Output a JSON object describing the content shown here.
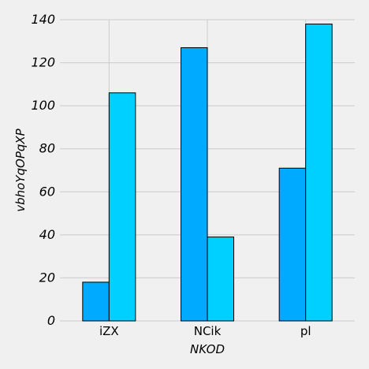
{
  "chart_data": {
    "type": "bar",
    "categories": [
      "iZX",
      "NCik",
      "pl"
    ],
    "series": [
      {
        "values": [
          18,
          127,
          71
        ],
        "color": "#00aaff"
      },
      {
        "values": [
          106,
          39,
          138
        ],
        "color": "#00d0ff"
      }
    ],
    "xlabel": "NKOD",
    "ylabel": "vbhoYqOPqXP",
    "ylim": [
      0,
      140
    ],
    "yticks": [
      0,
      20,
      40,
      60,
      80,
      100,
      120,
      140
    ],
    "grid": true,
    "background": "#f0f0f0",
    "grid_color": "#cbcbcb"
  }
}
